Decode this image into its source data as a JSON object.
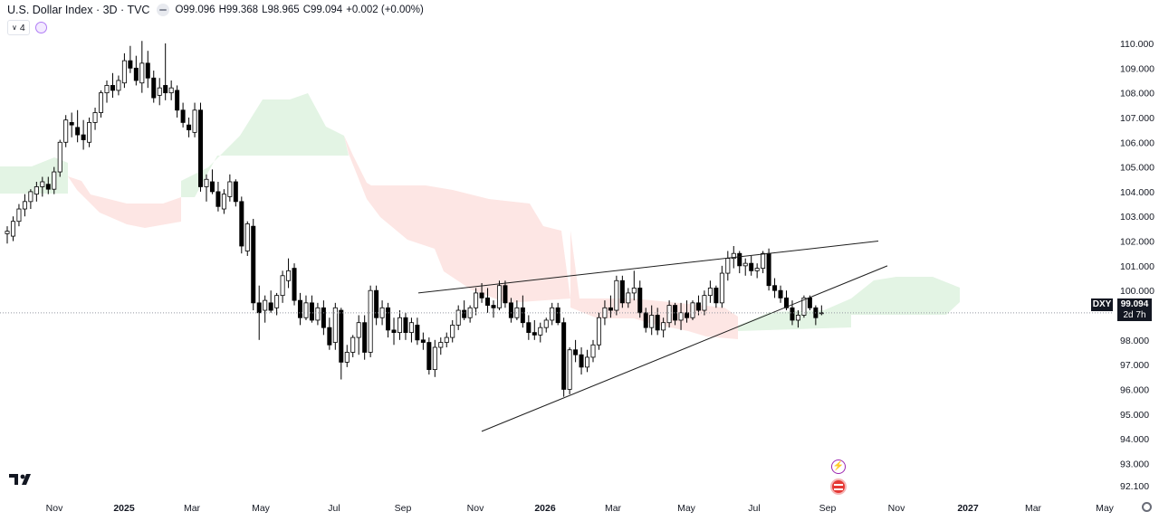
{
  "header": {
    "title": "U.S. Dollar Index · 3D · TVC",
    "ohlc": [
      {
        "k": "O",
        "v": "99.096"
      },
      {
        "k": "H",
        "v": "99.368"
      },
      {
        "k": "L",
        "v": "98.965"
      },
      {
        "k": "C",
        "v": "99.094"
      }
    ],
    "change": "+0.002 (+0.00%)",
    "indicator_count": "4"
  },
  "price_tag": {
    "symbol": "DXY",
    "value": "99.094",
    "countdown": "2d 7h"
  },
  "colors": {
    "up_body": "#ffffff",
    "down_body": "#000000",
    "wick": "#000000",
    "cloud_bull": "#e3f4e4",
    "cloud_bear": "#fde6e4",
    "trendline": "#1e1e1e",
    "axis_text": "#131722",
    "price_line": "#9598a1"
  },
  "icons": [
    "eye-icon",
    "chevron-down-icon",
    "sync-icon",
    "tradingview-logo-icon",
    "lightning-icon",
    "us-flag-icon",
    "gear-icon"
  ],
  "chart_data": {
    "type": "candlestick",
    "title": "U.S. Dollar Index · 3D · TVC",
    "symbol": "DXY",
    "interval": "3D",
    "last_price": 99.094,
    "ylim": [
      92.0,
      110.3
    ],
    "y_ticks": [
      "110.000",
      "109.000",
      "108.000",
      "107.000",
      "106.000",
      "105.000",
      "104.000",
      "103.000",
      "102.000",
      "101.000",
      "100.000",
      "99.000",
      "98.000",
      "97.000",
      "96.000",
      "95.000",
      "94.000",
      "93.000",
      "92.100"
    ],
    "x_ticks": [
      "Nov",
      "2025",
      "Mar",
      "May",
      "Jul",
      "Sep",
      "Nov",
      "2026",
      "Mar",
      "May",
      "Jul",
      "Sep",
      "Nov",
      "2027",
      "Mar",
      "May"
    ],
    "grid": false,
    "legend": "none",
    "candles": [
      [
        102.3,
        102.6,
        101.9,
        102.4
      ],
      [
        102.2,
        103.0,
        102.0,
        102.8
      ],
      [
        102.8,
        103.5,
        102.6,
        103.3
      ],
      [
        103.3,
        103.9,
        103.0,
        103.6
      ],
      [
        103.6,
        104.1,
        103.3,
        104.0
      ],
      [
        103.9,
        104.4,
        103.6,
        104.2
      ],
      [
        104.2,
        104.6,
        103.8,
        104.4
      ],
      [
        104.3,
        104.6,
        103.9,
        104.1
      ],
      [
        104.1,
        105.0,
        103.9,
        104.8
      ],
      [
        104.8,
        106.1,
        104.6,
        106.0
      ],
      [
        106.0,
        107.1,
        105.8,
        106.9
      ],
      [
        106.8,
        107.2,
        106.2,
        106.7
      ],
      [
        106.6,
        107.3,
        106.0,
        106.3
      ],
      [
        106.3,
        106.9,
        105.7,
        106.1
      ],
      [
        106.0,
        107.0,
        105.8,
        106.8
      ],
      [
        106.8,
        107.4,
        106.5,
        107.2
      ],
      [
        107.2,
        108.1,
        107.0,
        108.0
      ],
      [
        108.0,
        108.5,
        107.6,
        108.3
      ],
      [
        108.3,
        108.8,
        107.8,
        108.1
      ],
      [
        108.1,
        108.7,
        107.9,
        108.5
      ],
      [
        108.4,
        109.6,
        108.2,
        109.3
      ],
      [
        109.3,
        109.9,
        108.8,
        109.0
      ],
      [
        109.0,
        109.5,
        108.3,
        108.5
      ],
      [
        108.4,
        110.1,
        108.0,
        109.2
      ],
      [
        109.2,
        109.7,
        108.2,
        108.6
      ],
      [
        108.6,
        108.9,
        107.6,
        107.8
      ],
      [
        107.9,
        108.6,
        107.5,
        108.2
      ],
      [
        108.3,
        110.0,
        107.7,
        108.0
      ],
      [
        108.0,
        108.5,
        107.7,
        108.2
      ],
      [
        108.1,
        108.3,
        107.0,
        107.3
      ],
      [
        107.3,
        107.6,
        106.6,
        106.8
      ],
      [
        106.7,
        107.0,
        106.2,
        106.5
      ],
      [
        106.4,
        107.6,
        106.2,
        107.3
      ],
      [
        107.3,
        107.6,
        104.0,
        104.2
      ],
      [
        104.2,
        104.7,
        103.6,
        104.5
      ],
      [
        104.4,
        104.9,
        103.9,
        104.0
      ],
      [
        104.0,
        104.4,
        103.2,
        103.4
      ],
      [
        103.3,
        104.1,
        103.1,
        103.9
      ],
      [
        103.8,
        104.7,
        103.6,
        104.4
      ],
      [
        104.4,
        104.5,
        103.4,
        103.6
      ],
      [
        103.6,
        103.8,
        101.5,
        101.8
      ],
      [
        101.6,
        102.8,
        101.4,
        102.7
      ],
      [
        102.6,
        102.9,
        99.2,
        99.5
      ],
      [
        99.5,
        100.2,
        98.0,
        99.1
      ],
      [
        99.2,
        99.8,
        98.7,
        99.6
      ],
      [
        99.5,
        100.0,
        99.1,
        99.2
      ],
      [
        99.3,
        99.9,
        99.0,
        99.8
      ],
      [
        99.8,
        100.8,
        99.5,
        100.6
      ],
      [
        100.4,
        101.3,
        100.1,
        100.8
      ],
      [
        100.9,
        101.1,
        99.4,
        99.6
      ],
      [
        99.6,
        99.9,
        98.6,
        98.9
      ],
      [
        98.9,
        99.8,
        98.8,
        99.5
      ],
      [
        99.5,
        99.8,
        98.7,
        98.8
      ],
      [
        98.8,
        99.5,
        98.6,
        99.3
      ],
      [
        99.3,
        99.6,
        98.2,
        98.5
      ],
      [
        98.5,
        98.9,
        97.6,
        97.8
      ],
      [
        97.9,
        99.5,
        97.6,
        99.3
      ],
      [
        99.2,
        99.3,
        96.4,
        97.1
      ],
      [
        97.1,
        97.8,
        96.9,
        97.5
      ],
      [
        97.5,
        98.2,
        97.3,
        98.1
      ],
      [
        98.1,
        99.0,
        97.4,
        98.7
      ],
      [
        98.7,
        99.0,
        97.2,
        97.5
      ],
      [
        97.5,
        100.2,
        97.3,
        100.0
      ],
      [
        100.0,
        100.2,
        98.6,
        98.9
      ],
      [
        98.9,
        99.6,
        98.6,
        99.3
      ],
      [
        99.3,
        99.5,
        98.1,
        98.4
      ],
      [
        98.4,
        98.9,
        97.8,
        98.3
      ],
      [
        98.3,
        99.2,
        98.0,
        98.9
      ],
      [
        98.9,
        99.1,
        98.0,
        98.3
      ],
      [
        98.3,
        98.9,
        97.9,
        98.7
      ],
      [
        98.6,
        98.9,
        97.8,
        98.0
      ],
      [
        98.0,
        98.3,
        97.6,
        97.9
      ],
      [
        97.9,
        98.1,
        96.6,
        96.8
      ],
      [
        96.8,
        98.0,
        96.5,
        97.7
      ],
      [
        97.7,
        98.1,
        97.4,
        97.9
      ],
      [
        97.9,
        98.3,
        97.7,
        98.1
      ],
      [
        98.1,
        98.8,
        97.9,
        98.6
      ],
      [
        98.6,
        99.4,
        98.4,
        99.2
      ],
      [
        99.2,
        99.6,
        98.8,
        98.9
      ],
      [
        98.9,
        99.4,
        98.7,
        99.3
      ],
      [
        99.3,
        100.1,
        99.0,
        99.9
      ],
      [
        99.9,
        100.3,
        99.5,
        99.7
      ],
      [
        99.7,
        100.1,
        99.1,
        99.4
      ],
      [
        99.4,
        99.6,
        98.9,
        99.3
      ],
      [
        99.3,
        100.4,
        99.2,
        100.2
      ],
      [
        100.2,
        100.4,
        99.3,
        99.5
      ],
      [
        99.5,
        99.7,
        98.7,
        98.9
      ],
      [
        98.9,
        99.6,
        98.8,
        99.3
      ],
      [
        99.3,
        99.8,
        98.5,
        98.7
      ],
      [
        98.7,
        99.0,
        98.0,
        98.3
      ],
      [
        98.3,
        98.8,
        98.0,
        98.2
      ],
      [
        98.2,
        98.7,
        97.9,
        98.5
      ],
      [
        98.5,
        98.9,
        98.3,
        98.8
      ],
      [
        98.8,
        99.5,
        98.6,
        99.3
      ],
      [
        99.3,
        99.5,
        98.6,
        98.7
      ],
      [
        98.7,
        98.9,
        95.7,
        96.0
      ],
      [
        96.0,
        97.7,
        95.8,
        97.6
      ],
      [
        97.6,
        98.0,
        97.1,
        97.4
      ],
      [
        97.4,
        97.7,
        96.6,
        96.9
      ],
      [
        96.9,
        97.6,
        96.7,
        97.3
      ],
      [
        97.3,
        98.0,
        97.1,
        97.8
      ],
      [
        97.8,
        99.1,
        97.6,
        98.9
      ],
      [
        98.9,
        99.6,
        98.6,
        99.3
      ],
      [
        99.3,
        99.8,
        98.9,
        99.2
      ],
      [
        99.2,
        100.6,
        99.0,
        100.4
      ],
      [
        100.4,
        100.6,
        99.3,
        99.5
      ],
      [
        99.5,
        100.1,
        99.3,
        99.9
      ],
      [
        99.9,
        100.8,
        99.6,
        100.1
      ],
      [
        100.1,
        100.4,
        98.9,
        99.1
      ],
      [
        99.1,
        99.3,
        98.3,
        98.5
      ],
      [
        98.5,
        99.4,
        98.2,
        99.0
      ],
      [
        99.0,
        99.3,
        98.2,
        98.4
      ],
      [
        98.4,
        98.9,
        98.1,
        98.7
      ],
      [
        98.7,
        99.6,
        98.5,
        99.4
      ],
      [
        99.4,
        99.5,
        98.6,
        98.8
      ],
      [
        98.8,
        99.5,
        98.4,
        99.1
      ],
      [
        99.1,
        99.6,
        98.7,
        98.9
      ],
      [
        98.9,
        99.6,
        98.8,
        99.5
      ],
      [
        99.5,
        99.8,
        99.0,
        99.2
      ],
      [
        99.2,
        100.0,
        99.0,
        99.8
      ],
      [
        99.8,
        100.4,
        99.5,
        100.1
      ],
      [
        100.1,
        100.2,
        99.3,
        99.5
      ],
      [
        99.5,
        101.0,
        99.3,
        100.7
      ],
      [
        100.7,
        101.6,
        100.4,
        101.3
      ],
      [
        101.3,
        101.8,
        100.9,
        101.5
      ],
      [
        101.5,
        101.6,
        100.7,
        101.0
      ],
      [
        101.0,
        101.3,
        100.6,
        101.1
      ],
      [
        101.1,
        101.4,
        100.6,
        100.8
      ],
      [
        100.8,
        101.1,
        100.5,
        100.9
      ],
      [
        100.9,
        101.6,
        100.7,
        101.5
      ],
      [
        101.5,
        101.7,
        100.0,
        100.2
      ],
      [
        100.2,
        100.5,
        99.7,
        100.0
      ],
      [
        100.0,
        100.2,
        99.5,
        99.7
      ],
      [
        99.7,
        100.0,
        99.2,
        99.3
      ],
      [
        99.3,
        99.6,
        98.6,
        98.8
      ],
      [
        98.8,
        99.2,
        98.5,
        99.0
      ],
      [
        99.0,
        99.8,
        98.9,
        99.7
      ],
      [
        99.7,
        99.8,
        99.2,
        99.3
      ],
      [
        99.3,
        99.4,
        98.6,
        98.9
      ],
      [
        99.1,
        99.4,
        99.0,
        99.1
      ]
    ],
    "cloud": {
      "bullish_regions": [
        {
          "x_range": [
            "Sep 2024",
            "Dec 2024"
          ],
          "span": [
            104.0,
            105.5
          ]
        },
        {
          "x_range": [
            "Apr 2025",
            "Jul 2025"
          ],
          "span": [
            104.0,
            108.0
          ]
        },
        {
          "x_range": [
            "Apr 2026",
            "May 2026"
          ],
          "span": [
            98.5,
            99.5
          ]
        },
        {
          "x_range": [
            "Jul 2026",
            "Oct 2026"
          ],
          "span": [
            98.1,
            100.2
          ]
        }
      ],
      "bearish_regions": [
        {
          "x_range": [
            "Dec 2024",
            "Mar 2025"
          ],
          "span": [
            102.3,
            104.3
          ]
        },
        {
          "x_range": [
            "Jul 2025",
            "Feb 2026"
          ],
          "span": [
            99.0,
            105.0
          ]
        },
        {
          "x_range": [
            "Feb 2026",
            "Jul 2026"
          ],
          "span": [
            97.8,
            100.2
          ]
        }
      ]
    },
    "trendlines": [
      {
        "name": "upper",
        "from": 99.9,
        "to": 102.0
      },
      {
        "name": "lower",
        "from": 94.3,
        "to": 101.0
      }
    ]
  }
}
